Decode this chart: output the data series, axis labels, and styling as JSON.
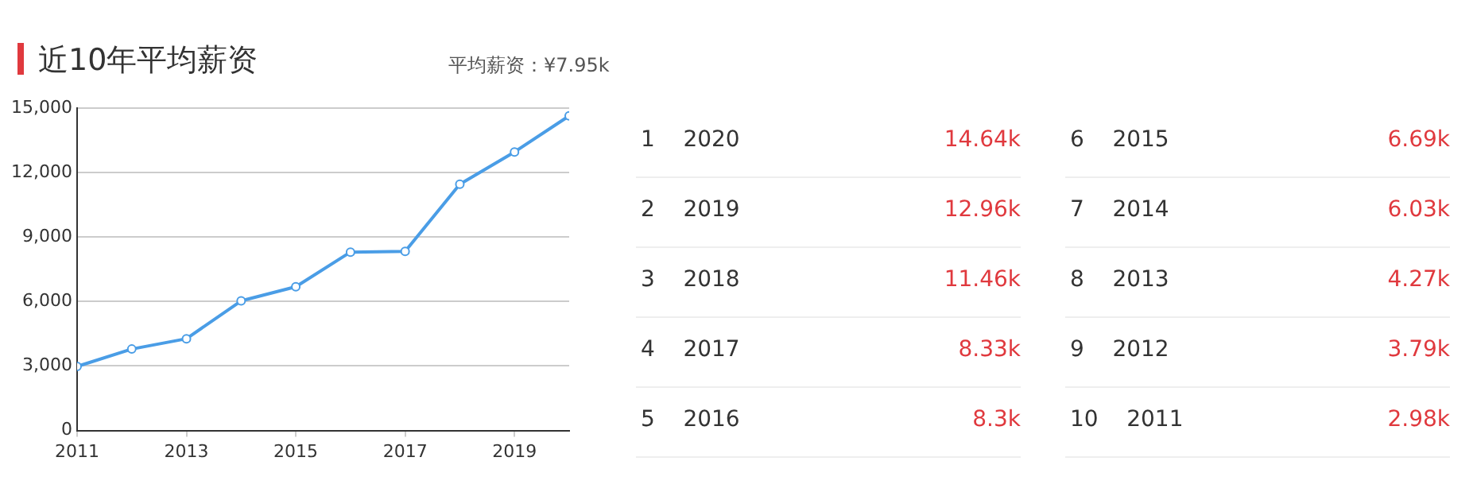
{
  "chart_data": [
    {
      "type": "line",
      "title": "近10年平均薪资",
      "subtitle": "平均薪资：¥7.95k",
      "x": [
        2011,
        2012,
        2013,
        2014,
        2015,
        2016,
        2017,
        2018,
        2019,
        2020
      ],
      "series": [
        {
          "color": "#4a9de6",
          "values": [
            2980,
            3790,
            4270,
            6030,
            6690,
            8300,
            8330,
            11460,
            12960,
            14640
          ]
        }
      ],
      "xlim": [
        2011,
        2020
      ],
      "xticks": [
        2011,
        2013,
        2015,
        2017,
        2019
      ],
      "ylim": [
        0,
        15000
      ],
      "yticks": [
        0,
        {
          "value": 3000,
          "label": "3,000"
        },
        {
          "value": 6000,
          "label": "6,000"
        },
        {
          "value": 9000,
          "label": "9,000"
        },
        {
          "value": 12000,
          "label": "12,000"
        },
        {
          "value": 15000,
          "label": "15,000"
        }
      ],
      "grid": "y",
      "marker": "circle",
      "line_style": "solid",
      "legend": false
    },
    {
      "type": "other",
      "annotations": [
        "1    2020",
        "14.64k",
        "2    2019",
        "12.96k",
        "3    2018",
        "11.46k",
        "4    2017",
        "8.33k",
        "5    2016",
        "8.3k",
        "6    2015",
        "6.69k",
        "7    2014",
        "6.03k",
        "8    2013",
        "4.27k",
        "9    2012",
        "3.79k",
        "10    2011",
        "2.98k"
      ]
    }
  ]
}
